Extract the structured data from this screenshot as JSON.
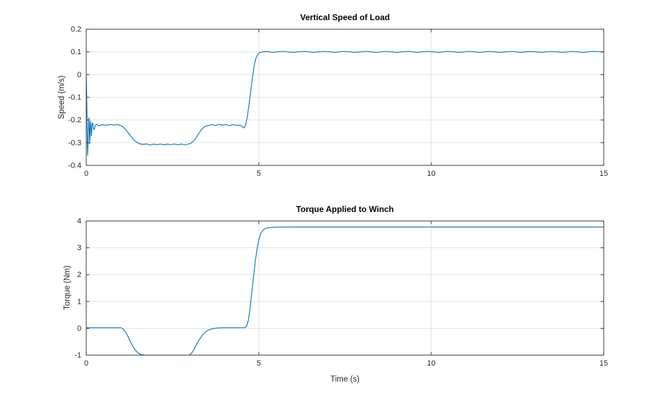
{
  "figure": {
    "background": "#ffffff"
  },
  "colors": {
    "line": "#0072BD",
    "grid": "#e0e0e0",
    "axis": "#262626",
    "tick_label": "#262626",
    "title": "#000000"
  },
  "chart_data": [
    {
      "id": "speed",
      "type": "line",
      "title": "Vertical Speed of Load",
      "xlabel": "",
      "ylabel": "Speed (m/s)",
      "xlim": [
        0,
        15
      ],
      "ylim": [
        -0.4,
        0.2
      ],
      "xticks": [
        0,
        5,
        10,
        15
      ],
      "yticks": [
        -0.4,
        -0.3,
        -0.2,
        -0.1,
        0,
        0.1,
        0.2
      ],
      "xtick_labels": [
        "0",
        "5",
        "10",
        "15"
      ],
      "ytick_labels": [
        "-0.4",
        "-0.3",
        "-0.2",
        "-0.1",
        "0",
        "0.1",
        "0.2"
      ],
      "grid": true,
      "legend": null,
      "series": [
        {
          "name": "vertical-speed",
          "color": "#0072BD",
          "points": [
            [
              0,
              -0.005
            ],
            [
              0.01,
              -0.07
            ],
            [
              0.02,
              -0.16
            ],
            [
              0.03,
              -0.27
            ],
            [
              0.04,
              -0.355
            ],
            [
              0.055,
              -0.3
            ],
            [
              0.07,
              -0.205
            ],
            [
              0.08,
              -0.19
            ],
            [
              0.09,
              -0.25
            ],
            [
              0.1,
              -0.305
            ],
            [
              0.11,
              -0.27
            ],
            [
              0.12,
              -0.215
            ],
            [
              0.13,
              -0.205
            ],
            [
              0.14,
              -0.245
            ],
            [
              0.15,
              -0.27
            ],
            [
              0.16,
              -0.245
            ],
            [
              0.17,
              -0.218
            ],
            [
              0.19,
              -0.213
            ],
            [
              0.21,
              -0.238
            ],
            [
              0.23,
              -0.243
            ],
            [
              0.26,
              -0.225
            ],
            [
              0.3,
              -0.218
            ],
            [
              0.35,
              -0.226
            ],
            [
              0.4,
              -0.222
            ],
            [
              0.5,
              -0.221
            ],
            [
              0.6,
              -0.223
            ],
            [
              0.7,
              -0.22
            ],
            [
              0.8,
              -0.2225
            ],
            [
              0.9,
              -0.2205
            ],
            [
              0.95,
              -0.222
            ],
            [
              1.05,
              -0.228
            ],
            [
              1.15,
              -0.243
            ],
            [
              1.25,
              -0.263
            ],
            [
              1.35,
              -0.283
            ],
            [
              1.45,
              -0.297
            ],
            [
              1.55,
              -0.305
            ],
            [
              1.65,
              -0.3075
            ],
            [
              1.75,
              -0.305
            ],
            [
              1.85,
              -0.31
            ],
            [
              1.95,
              -0.306
            ],
            [
              2.05,
              -0.309
            ],
            [
              2.15,
              -0.3055
            ],
            [
              2.25,
              -0.3095
            ],
            [
              2.35,
              -0.306
            ],
            [
              2.45,
              -0.309
            ],
            [
              2.55,
              -0.3055
            ],
            [
              2.65,
              -0.3095
            ],
            [
              2.75,
              -0.306
            ],
            [
              2.85,
              -0.309
            ],
            [
              2.95,
              -0.307
            ],
            [
              3.05,
              -0.301
            ],
            [
              3.15,
              -0.286
            ],
            [
              3.25,
              -0.262
            ],
            [
              3.35,
              -0.24
            ],
            [
              3.45,
              -0.228
            ],
            [
              3.55,
              -0.2235
            ],
            [
              3.65,
              -0.2205
            ],
            [
              3.75,
              -0.224
            ],
            [
              3.85,
              -0.2195
            ],
            [
              3.95,
              -0.2235
            ],
            [
              4.05,
              -0.2205
            ],
            [
              4.15,
              -0.224
            ],
            [
              4.25,
              -0.2205
            ],
            [
              4.35,
              -0.2235
            ],
            [
              4.45,
              -0.2225
            ],
            [
              4.52,
              -0.228
            ],
            [
              4.57,
              -0.235
            ],
            [
              4.62,
              -0.222
            ],
            [
              4.67,
              -0.185
            ],
            [
              4.72,
              -0.13
            ],
            [
              4.77,
              -0.07
            ],
            [
              4.82,
              -0.01
            ],
            [
              4.87,
              0.04
            ],
            [
              4.92,
              0.072
            ],
            [
              4.97,
              0.089
            ],
            [
              5.02,
              0.096
            ],
            [
              5.12,
              0.1
            ],
            [
              5.25,
              0.1015
            ],
            [
              5.4,
              0.098
            ],
            [
              5.7,
              0.102
            ],
            [
              6.0,
              0.098
            ],
            [
              6.3,
              0.102
            ],
            [
              6.6,
              0.098
            ],
            [
              6.9,
              0.102
            ],
            [
              7.2,
              0.098
            ],
            [
              7.5,
              0.102
            ],
            [
              7.8,
              0.098
            ],
            [
              8.1,
              0.102
            ],
            [
              8.4,
              0.098
            ],
            [
              8.7,
              0.102
            ],
            [
              9.0,
              0.098
            ],
            [
              9.3,
              0.102
            ],
            [
              9.6,
              0.098
            ],
            [
              9.9,
              0.102
            ],
            [
              10.2,
              0.098
            ],
            [
              10.5,
              0.102
            ],
            [
              10.8,
              0.098
            ],
            [
              11.1,
              0.102
            ],
            [
              11.4,
              0.098
            ],
            [
              11.7,
              0.102
            ],
            [
              12.0,
              0.098
            ],
            [
              12.3,
              0.102
            ],
            [
              12.6,
              0.098
            ],
            [
              12.9,
              0.102
            ],
            [
              13.2,
              0.098
            ],
            [
              13.5,
              0.102
            ],
            [
              13.8,
              0.098
            ],
            [
              14.1,
              0.102
            ],
            [
              14.4,
              0.098
            ],
            [
              14.7,
              0.102
            ],
            [
              15,
              0.1
            ]
          ]
        }
      ]
    },
    {
      "id": "torque",
      "type": "line",
      "title": "Torque Applied to Winch",
      "xlabel": "Time (s)",
      "ylabel": "Torque (Nm)",
      "xlim": [
        0,
        15
      ],
      "ylim": [
        -1,
        4
      ],
      "xticks": [
        0,
        5,
        10,
        15
      ],
      "yticks": [
        -1,
        0,
        1,
        2,
        3,
        4
      ],
      "xtick_labels": [
        "0",
        "5",
        "10",
        "15"
      ],
      "ytick_labels": [
        "-1",
        "0",
        "1",
        "2",
        "3",
        "4"
      ],
      "grid": true,
      "legend": null,
      "series": [
        {
          "name": "winch-torque",
          "color": "#0072BD",
          "points": [
            [
              0,
              0.02
            ],
            [
              0.5,
              0.02
            ],
            [
              1.0,
              0.02
            ],
            [
              1.05,
              0.0
            ],
            [
              1.1,
              -0.07
            ],
            [
              1.15,
              -0.16
            ],
            [
              1.2,
              -0.28
            ],
            [
              1.3,
              -0.55
            ],
            [
              1.4,
              -0.78
            ],
            [
              1.5,
              -0.92
            ],
            [
              1.6,
              -0.98
            ],
            [
              1.7,
              -1.0
            ],
            [
              2.0,
              -1.0
            ],
            [
              2.5,
              -1.0
            ],
            [
              2.98,
              -1.0
            ],
            [
              3.03,
              -0.96
            ],
            [
              3.08,
              -0.88
            ],
            [
              3.15,
              -0.72
            ],
            [
              3.25,
              -0.48
            ],
            [
              3.35,
              -0.28
            ],
            [
              3.45,
              -0.14
            ],
            [
              3.55,
              -0.06
            ],
            [
              3.65,
              -0.02
            ],
            [
              3.75,
              0.005
            ],
            [
              3.85,
              0.015
            ],
            [
              4.0,
              0.02
            ],
            [
              4.3,
              0.02
            ],
            [
              4.6,
              0.02
            ],
            [
              4.65,
              0.08
            ],
            [
              4.7,
              0.3
            ],
            [
              4.75,
              0.75
            ],
            [
              4.8,
              1.35
            ],
            [
              4.85,
              1.95
            ],
            [
              4.9,
              2.5
            ],
            [
              4.95,
              2.95
            ],
            [
              5.0,
              3.28
            ],
            [
              5.05,
              3.5
            ],
            [
              5.1,
              3.62
            ],
            [
              5.15,
              3.69
            ],
            [
              5.25,
              3.745
            ],
            [
              5.4,
              3.765
            ],
            [
              5.6,
              3.772
            ],
            [
              6.0,
              3.775
            ],
            [
              7,
              3.775
            ],
            [
              9,
              3.775
            ],
            [
              11,
              3.775
            ],
            [
              13,
              3.775
            ],
            [
              15,
              3.775
            ]
          ]
        }
      ]
    }
  ]
}
